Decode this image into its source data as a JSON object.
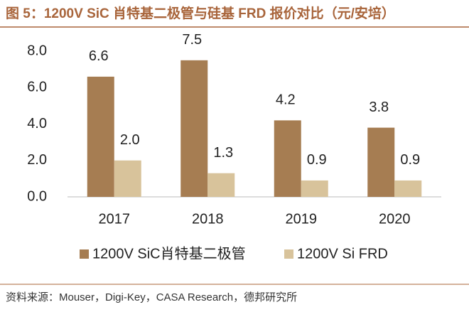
{
  "chart_data": {
    "type": "bar",
    "title": "图 5：1200V SiC 肖特基二极管与硅基 FRD 报价对比（元/安培）",
    "categories": [
      "2017",
      "2018",
      "2019",
      "2020"
    ],
    "series": [
      {
        "name": "1200V SiC肖特基二极管",
        "color": "#a67d52",
        "values": [
          6.6,
          7.5,
          4.2,
          3.8
        ],
        "value_labels": [
          "6.6",
          "7.5",
          "4.2",
          "3.8"
        ]
      },
      {
        "name": "1200V Si FRD",
        "color": "#d8c39b",
        "values": [
          2.0,
          1.3,
          0.9,
          0.9
        ],
        "value_labels": [
          "2.0",
          "1.3",
          "0.9",
          "0.9"
        ]
      }
    ],
    "ylim": [
      0,
      8
    ],
    "yticks": [
      {
        "value": 0,
        "label": "0.0"
      },
      {
        "value": 2,
        "label": "2.0"
      },
      {
        "value": 4,
        "label": "4.0"
      },
      {
        "value": 6,
        "label": "6.0"
      },
      {
        "value": 8,
        "label": "8.0"
      }
    ],
    "grid": false,
    "legend": "bottom",
    "source": "资料来源：Mouser，Digi-Key，CASA Research，德邦研究所"
  }
}
